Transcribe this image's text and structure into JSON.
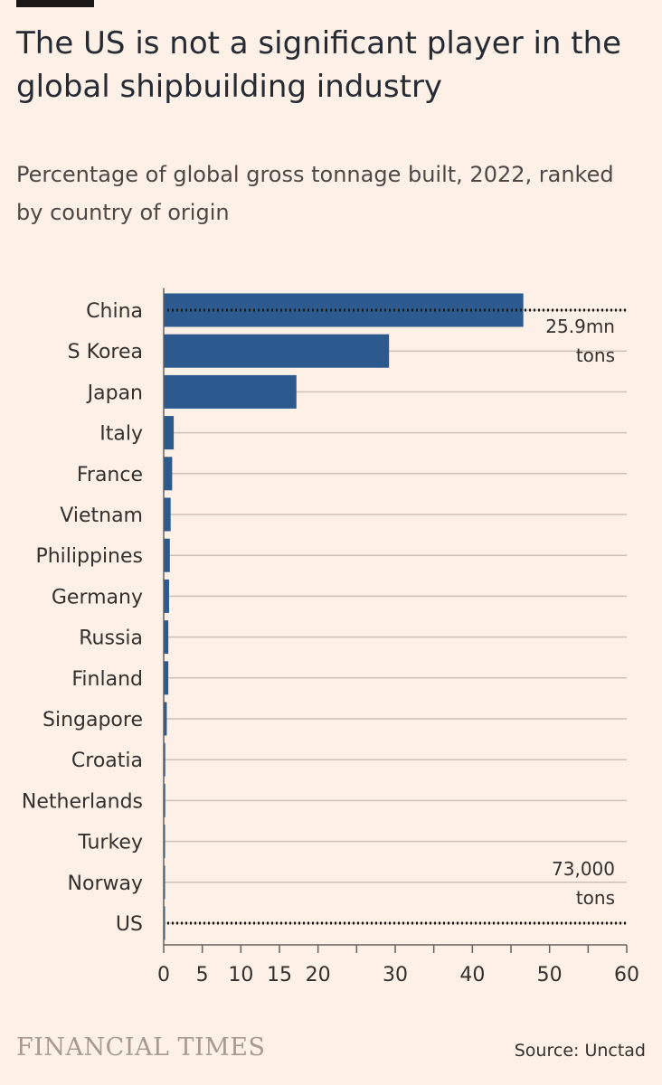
{
  "header": {
    "title": "The US is not a significant player in the global shipbuilding industry",
    "subtitle": "Percentage of global gross tonnage built, 2022, ranked by country of origin"
  },
  "footer": {
    "brand": "FINANCIAL TIMES",
    "source": "Source: Unctad"
  },
  "colors": {
    "bar": "#2c5a8f",
    "grid": "#ccc1b7",
    "text": "#33302e",
    "background": "#fdf0e6"
  },
  "chart_data": {
    "type": "bar",
    "orientation": "horizontal",
    "categories": [
      "China",
      "S Korea",
      "Japan",
      "Italy",
      "France",
      "Vietnam",
      "Philippines",
      "Germany",
      "Russia",
      "Finland",
      "Singapore",
      "Croatia",
      "Netherlands",
      "Turkey",
      "Norway",
      "US"
    ],
    "values": [
      46.6,
      29.2,
      17.2,
      1.3,
      1.1,
      0.9,
      0.8,
      0.7,
      0.6,
      0.6,
      0.4,
      0.2,
      0.2,
      0.15,
      0.15,
      0.13
    ],
    "xlim": [
      0,
      60
    ],
    "xticks": [
      0,
      5,
      10,
      15,
      20,
      30,
      40,
      50,
      60
    ],
    "grid": true,
    "annotations": [
      {
        "category": "China",
        "lines": [
          "25.9mn",
          "tons"
        ]
      },
      {
        "category": "US",
        "lines": [
          "73,000",
          "tons"
        ]
      }
    ]
  }
}
